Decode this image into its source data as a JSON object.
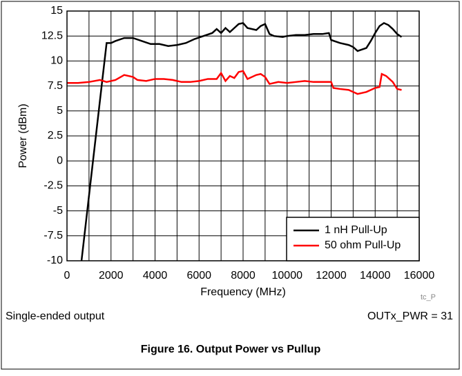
{
  "chart_data": {
    "type": "line",
    "x_label": "Frequency (MHz)",
    "y_label": "Power (dBm)",
    "annotations": [
      "tc_P",
      "Single-ended output",
      "OUTx_PWR = 31"
    ],
    "caption": "Figure 16. Output Power vs Pullup",
    "xlim": [
      0,
      16000
    ],
    "xticks": [
      0,
      2000,
      4000,
      6000,
      8000,
      10000,
      12000,
      14000,
      16000
    ],
    "ylim": [
      -10,
      15
    ],
    "yticks": [
      15,
      12.5,
      10,
      7.5,
      5,
      2.5,
      0,
      -2.5,
      -5,
      -7.5,
      -10
    ],
    "grid": true,
    "minor_grid": true,
    "legend": "lower right",
    "series": [
      {
        "name": "1 nH Pull-Up",
        "color": "#000000",
        "x": [
          660,
          1600,
          1800,
          2000,
          2200,
          2600,
          3000,
          3400,
          3800,
          4200,
          4400,
          4600,
          5000,
          5400,
          5800,
          6200,
          6600,
          6800,
          7000,
          7200,
          7400,
          7600,
          7800,
          8000,
          8200,
          8600,
          8800,
          9000,
          9200,
          9400,
          9800,
          10000,
          10400,
          10800,
          11200,
          11600,
          11900,
          12000,
          12400,
          12800,
          13000,
          13200,
          13600,
          13800,
          14000,
          14200,
          14400,
          14600,
          14800,
          15000,
          15200
        ],
        "values": [
          -10,
          8,
          11.8,
          11.8,
          12,
          12.3,
          12.3,
          12,
          11.7,
          11.7,
          11.6,
          11.5,
          11.6,
          11.8,
          12.2,
          12.5,
          12.8,
          13.2,
          12.8,
          13.3,
          12.9,
          13.3,
          13.7,
          13.8,
          13.3,
          13.1,
          13.5,
          13.7,
          12.7,
          12.5,
          12.4,
          12.5,
          12.6,
          12.6,
          12.7,
          12.7,
          12.8,
          12.1,
          11.8,
          11.6,
          11.4,
          11,
          11.3,
          12,
          12.8,
          13.5,
          13.8,
          13.6,
          13.2,
          12.7,
          12.4
        ]
      },
      {
        "name": "50 ohm Pull-Up",
        "color": "#ff0000",
        "x": [
          0,
          500,
          1000,
          1500,
          1800,
          2200,
          2600,
          3000,
          3200,
          3600,
          4000,
          4400,
          4800,
          5200,
          5600,
          6000,
          6400,
          6800,
          7000,
          7200,
          7400,
          7600,
          7800,
          8000,
          8200,
          8600,
          8800,
          9000,
          9200,
          9600,
          10000,
          10400,
          10800,
          11200,
          11600,
          12000,
          12100,
          12400,
          12800,
          13000,
          13200,
          13600,
          14000,
          14200,
          14300,
          14500,
          14800,
          15000,
          15200
        ],
        "values": [
          7.8,
          7.8,
          7.9,
          8.1,
          7.9,
          8.1,
          8.6,
          8.4,
          8.1,
          8,
          8.2,
          8.2,
          8.1,
          7.9,
          7.9,
          8,
          8.2,
          8.2,
          8.8,
          8,
          8.5,
          8.3,
          8.9,
          9,
          8.2,
          8.6,
          8.7,
          8.4,
          7.7,
          7.9,
          7.8,
          7.9,
          8,
          7.9,
          7.9,
          7.9,
          7.3,
          7.2,
          7.1,
          6.9,
          6.7,
          6.9,
          7.3,
          7.4,
          8.7,
          8.5,
          7.9,
          7.2,
          7.1
        ]
      }
    ]
  }
}
